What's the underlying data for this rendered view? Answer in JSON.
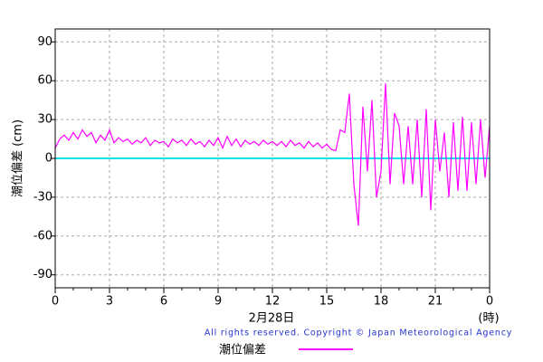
{
  "chart_data": {
    "type": "line",
    "y_label": "潮位偏差 (cm)",
    "x_label": "2月28日",
    "x_unit": "(時)",
    "copyright": "All rights reserved. Copyright © Japan Meteorological Agency",
    "x": [
      0,
      0.25,
      0.5,
      0.75,
      1,
      1.25,
      1.5,
      1.75,
      2,
      2.25,
      2.5,
      2.75,
      3,
      3.25,
      3.5,
      3.75,
      4,
      4.25,
      4.5,
      4.75,
      5,
      5.25,
      5.5,
      5.75,
      6,
      6.25,
      6.5,
      6.75,
      7,
      7.25,
      7.5,
      7.75,
      8,
      8.25,
      8.5,
      8.75,
      9,
      9.25,
      9.5,
      9.75,
      10,
      10.25,
      10.5,
      10.75,
      11,
      11.25,
      11.5,
      11.75,
      12,
      12.25,
      12.5,
      12.75,
      13,
      13.25,
      13.5,
      13.75,
      14,
      14.25,
      14.5,
      14.75,
      15,
      15.25,
      15.5,
      15.75,
      16,
      16.25,
      16.5,
      16.75,
      17,
      17.25,
      17.5,
      17.75,
      18,
      18.25,
      18.5,
      18.75,
      19,
      19.25,
      19.5,
      19.75,
      20,
      20.25,
      20.5,
      20.75,
      21,
      21.25,
      21.5,
      21.75,
      22,
      22.25,
      22.5,
      22.75,
      23,
      23.25,
      23.5,
      23.75,
      24
    ],
    "series": [
      {
        "name": "潮位偏差",
        "color": "#ff00ff",
        "values": [
          8,
          15,
          18,
          14,
          20,
          15,
          22,
          17,
          20,
          12,
          18,
          14,
          22,
          12,
          16,
          13,
          15,
          11,
          14,
          12,
          16,
          10,
          14,
          12,
          13,
          9,
          15,
          12,
          14,
          10,
          15,
          11,
          13,
          9,
          14,
          10,
          16,
          8,
          17,
          10,
          15,
          9,
          14,
          11,
          13,
          10,
          14,
          11,
          13,
          10,
          13,
          9,
          14,
          10,
          12,
          8,
          13,
          9,
          12,
          8,
          11,
          7,
          6,
          22,
          20,
          50,
          -20,
          -52,
          40,
          -10,
          45,
          -30,
          -10,
          58,
          -20,
          35,
          25,
          -20,
          25,
          -20,
          30,
          -30,
          38,
          -40,
          30,
          -10,
          20,
          -30,
          28,
          -25,
          32,
          -25,
          28,
          -20,
          30,
          -15,
          25
        ]
      }
    ],
    "xlim": [
      0,
      24
    ],
    "xticks": [
      0,
      3,
      6,
      9,
      12,
      15,
      18,
      21,
      {
        "value": 24,
        "label": "0"
      }
    ],
    "xminorticks": [
      1,
      2,
      4,
      5,
      7,
      8,
      10,
      11,
      13,
      14,
      16,
      17,
      19,
      20,
      22,
      23
    ],
    "ylim": [
      -100,
      100
    ],
    "yticks": [
      -90,
      -60,
      -30,
      0,
      30,
      60,
      90
    ],
    "grid": true,
    "zero_line_color": "#00e5ee"
  }
}
